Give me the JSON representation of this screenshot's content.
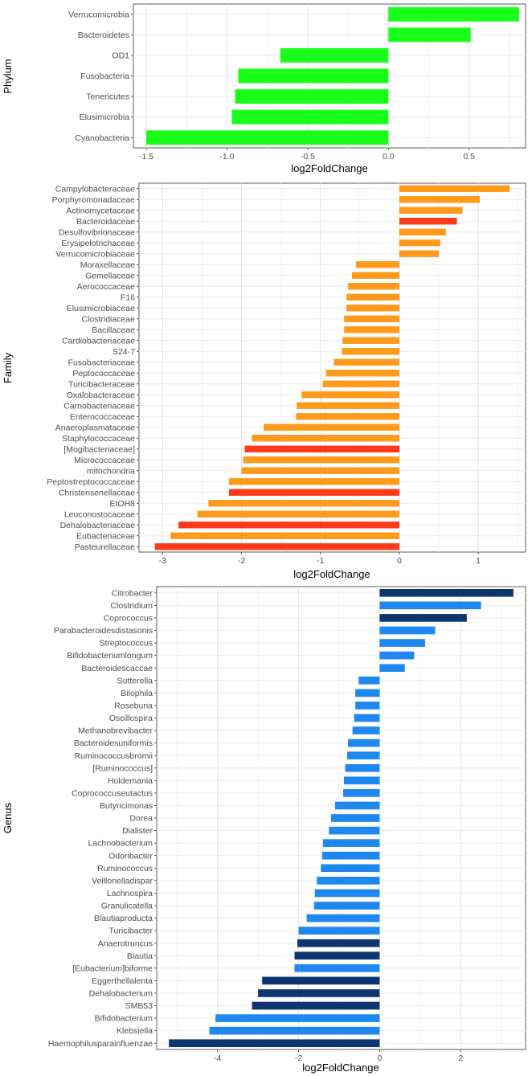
{
  "chart_data": [
    {
      "type": "bar",
      "orientation": "horizontal",
      "title": "",
      "xlabel": "log2FoldChange",
      "ylabel": "Phylum",
      "xlim": [
        -1.58,
        0.85
      ],
      "xticks": [
        -1.5,
        -1.0,
        -0.5,
        0.0,
        0.5
      ],
      "xtick_labels": [
        "-1.5",
        "-1.0",
        "-0.5",
        "0.0",
        "0.5"
      ],
      "grid": true,
      "categories": [
        "Verrucomicrobia",
        "Bacteroidetes",
        "OD1",
        "Fusobacteria",
        "Tenericutes",
        "Elusimicrobia",
        "Cyanobacteria"
      ],
      "values": [
        0.81,
        0.51,
        -0.67,
        -0.93,
        -0.95,
        -0.97,
        -1.5
      ],
      "colors": [
        "#1aff1a",
        "#1aff1a",
        "#1aff1a",
        "#1aff1a",
        "#1aff1a",
        "#1aff1a",
        "#1aff1a"
      ]
    },
    {
      "type": "bar",
      "orientation": "horizontal",
      "title": "",
      "xlabel": "log2FoldChange",
      "ylabel": "Family",
      "xlim": [
        -3.3,
        1.6
      ],
      "xticks": [
        -3,
        -2,
        -1,
        0,
        1
      ],
      "xtick_labels": [
        "-3",
        "-2",
        "-1",
        "0",
        "1"
      ],
      "grid": true,
      "categories": [
        "Campylobacteraceae",
        "Porphyromonadaceae",
        "Actinomycetaceae",
        "Bacteroidaceae",
        "Desulfovibrionaceae",
        "Erysipelotrichaceae",
        "Verrucomicrobiaceae",
        "Moraxellaceae",
        "Gemellaceae",
        "Aerococcaceae",
        "F16",
        "Elusimicrobiaceae",
        "Clostridiaceae",
        "Bacillaceae",
        "Cardiobacteriaceae",
        "S24-7",
        "Fusobacteriaceae",
        "Peptococcaceae",
        "Turicibacteraceae",
        "Oxalobacteraceae",
        "Carnobacteriaceae",
        "Enterococcaceae",
        "Anaeroplasmataceae",
        "Staphylococcaceae",
        "[Mogibacteriaceae]",
        "Micrococcaceae",
        "mitochondria",
        "Peptostreptococcaceae",
        "Christensenellaceae",
        "EtOH8",
        "Leuconostocaceae",
        "Dehalobacteriaceae",
        "Eubacteriaceae",
        "Pasteurellaceae"
      ],
      "values": [
        1.4,
        1.02,
        0.8,
        0.73,
        0.59,
        0.52,
        0.5,
        -0.55,
        -0.6,
        -0.65,
        -0.67,
        -0.67,
        -0.7,
        -0.7,
        -0.72,
        -0.73,
        -0.83,
        -0.93,
        -0.97,
        -1.24,
        -1.3,
        -1.31,
        -1.72,
        -1.87,
        -1.96,
        -1.98,
        -2.0,
        -2.16,
        -2.16,
        -2.42,
        -2.56,
        -2.8,
        -2.9,
        -3.1
      ],
      "colors": [
        "#ff9a1a",
        "#ff9a1a",
        "#ff9a1a",
        "#ff3a1a",
        "#ff9a1a",
        "#ff9a1a",
        "#ff9a1a",
        "#ff9a1a",
        "#ff9a1a",
        "#ff9a1a",
        "#ff9a1a",
        "#ff9a1a",
        "#ff9a1a",
        "#ff9a1a",
        "#ff9a1a",
        "#ff9a1a",
        "#ff9a1a",
        "#ff9a1a",
        "#ff9a1a",
        "#ff9a1a",
        "#ff9a1a",
        "#ff9a1a",
        "#ff9a1a",
        "#ff9a1a",
        "#ff3a1a",
        "#ff9a1a",
        "#ff9a1a",
        "#ff9a1a",
        "#ff3a1a",
        "#ff9a1a",
        "#ff9a1a",
        "#ff3a1a",
        "#ff9a1a",
        "#ff3a1a"
      ]
    },
    {
      "type": "bar",
      "orientation": "horizontal",
      "title": "",
      "xlabel": "log2FoldChange",
      "ylabel": "Genus",
      "xlim": [
        -5.5,
        3.6
      ],
      "xticks": [
        -4,
        -2,
        0,
        2
      ],
      "xtick_labels": [
        "-4",
        "-2",
        "0",
        "2"
      ],
      "grid": true,
      "categories": [
        "Citrobacter",
        "Clostridium",
        "Coprococcus",
        "Parabacteroidesdistasonis",
        "Streptococcus",
        "Bifidobacteriumlongum",
        "Bacteroidescaccae",
        "Sutterella",
        "Bilophila",
        "Roseburia",
        "Oscillospira",
        "Methanobrevibacter",
        "Bacteroidesuniformis",
        "Ruminococcusbromii",
        "[Ruminococcus]",
        "Holdemania",
        "Coprococcuseutactus",
        "Butyricimonas",
        "Dorea",
        "Dialister",
        "Lachnobacterium",
        "Odoribacter",
        "Ruminococcus",
        "Veillonelladispar",
        "Lachnospira",
        "Granulicatella",
        "Blautiaproducta",
        "Turicibacter",
        "Anaerotruncus",
        "Blautia",
        "[Eubacterium]biforme",
        "Eggerthellalenta",
        "Dehalobacterium",
        "SMB53",
        "Bifidobacterium",
        "Klebsiella",
        "Haemophilusparainfluenzae"
      ],
      "values": [
        3.3,
        2.5,
        2.15,
        1.37,
        1.12,
        0.85,
        0.62,
        -0.52,
        -0.6,
        -0.6,
        -0.63,
        -0.67,
        -0.78,
        -0.8,
        -0.85,
        -0.88,
        -0.9,
        -1.1,
        -1.2,
        -1.25,
        -1.4,
        -1.42,
        -1.45,
        -1.55,
        -1.6,
        -1.62,
        -1.8,
        -2.0,
        -2.03,
        -2.1,
        -2.1,
        -2.9,
        -3.0,
        -3.15,
        -4.05,
        -4.2,
        -5.2
      ],
      "colors": [
        "#0d3570",
        "#1e88f0",
        "#0d3570",
        "#1e88f0",
        "#1e88f0",
        "#1e88f0",
        "#1e88f0",
        "#1e88f0",
        "#1e88f0",
        "#1e88f0",
        "#1e88f0",
        "#1e88f0",
        "#1e88f0",
        "#1e88f0",
        "#1e88f0",
        "#1e88f0",
        "#1e88f0",
        "#1e88f0",
        "#1e88f0",
        "#1e88f0",
        "#1e88f0",
        "#1e88f0",
        "#1e88f0",
        "#1e88f0",
        "#1e88f0",
        "#1e88f0",
        "#1e88f0",
        "#1e88f0",
        "#0d3570",
        "#0d3570",
        "#1e88f0",
        "#0d3570",
        "#0d3570",
        "#0d3570",
        "#1e88f0",
        "#1e88f0",
        "#0d3570"
      ]
    }
  ]
}
